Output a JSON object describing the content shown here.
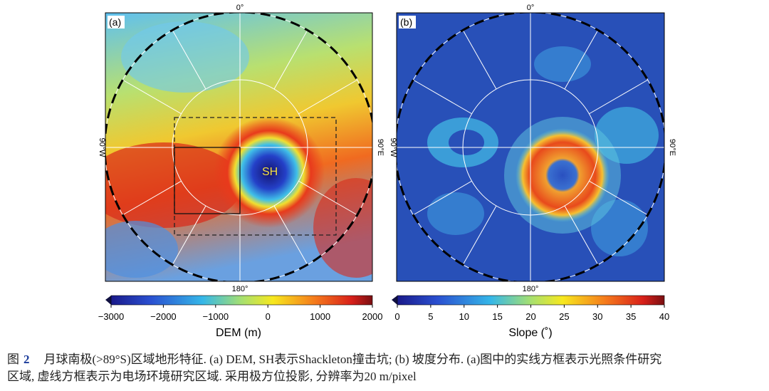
{
  "panels": [
    {
      "label": "(a)",
      "top": "0°",
      "bottom": "180°",
      "left": "90°W",
      "right": "90°E",
      "annotation": "SH",
      "colorbar": {
        "ticks": [
          "−3000",
          "−2000",
          "−1000",
          "0",
          "1000",
          "2000"
        ],
        "label": "DEM (m)"
      }
    },
    {
      "label": "(b)",
      "top": "0°",
      "bottom": "180°",
      "left": "90°W",
      "right": "90°E",
      "colorbar": {
        "ticks": [
          "0",
          "5",
          "10",
          "15",
          "20",
          "25",
          "30",
          "35",
          "40"
        ],
        "label": "Slope (˚)"
      }
    }
  ],
  "caption": {
    "figure_label": "图",
    "figure_number": "2",
    "line1": "月球南极(>89°S)区域地形特征. (a) DEM, SH表示Shackleton撞击坑; (b) 坡度分布. (a)图中的实线方框表示光照条件研究",
    "line2": "区域, 虚线方框表示为电场环境研究区域. 采用极方位投影, 分辨率为20 m/pixel"
  }
}
